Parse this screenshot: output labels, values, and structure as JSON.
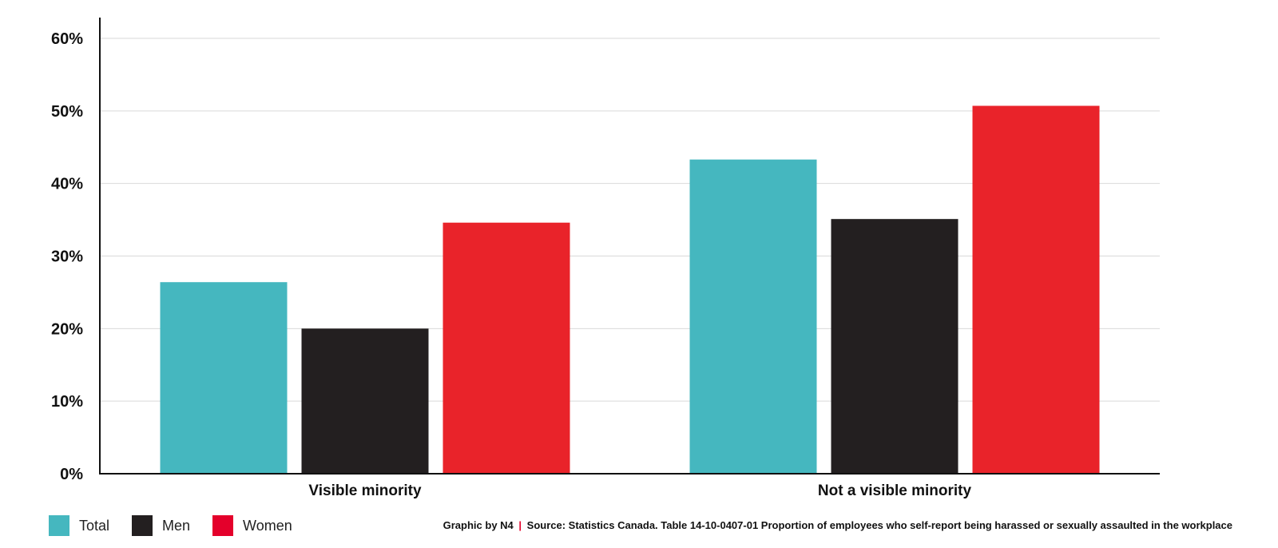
{
  "chart_data": {
    "type": "bar",
    "categories": [
      "Visible minority",
      "Not a visible minority"
    ],
    "series": [
      {
        "name": "Total",
        "color": "#45b7bf",
        "values": [
          26.4,
          43.3
        ]
      },
      {
        "name": "Men",
        "color": "#231f20",
        "values": [
          20.0,
          35.1
        ]
      },
      {
        "name": "Women",
        "color": "#e9232a",
        "values": [
          34.6,
          50.7
        ]
      }
    ],
    "title": "",
    "xlabel": "",
    "ylabel": "",
    "ylim": [
      0,
      60
    ],
    "yticks": [
      "0%",
      "10%",
      "20%",
      "30%",
      "40%",
      "50%",
      "60%"
    ],
    "grid": true,
    "legend_position": "bottom-left"
  },
  "footer": {
    "credit": "Graphic by N4",
    "separator": "|",
    "source": "Source: Statistics Canada. Table 14-10-0407-01  Proportion of employees who self-report being harassed or sexually assaulted in the workplace"
  }
}
